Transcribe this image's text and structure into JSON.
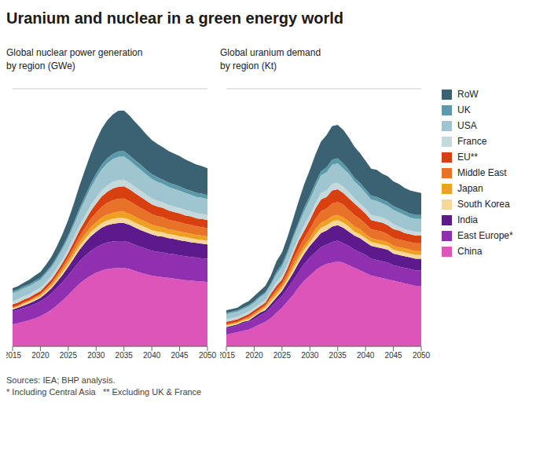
{
  "title": "Uranium and nuclear in a green energy world",
  "annotations": [
    "Sources: IEA; BHP analysis.\n* Including Central Asia   ** Excluding UK & France"
  ],
  "legend": "right",
  "chart_data": [
    {
      "type": "area",
      "stacked": true,
      "subtitle": "Global nuclear power generation\nby region (GWe)",
      "x": [
        2015,
        2016,
        2017,
        2018,
        2019,
        2020,
        2021,
        2022,
        2023,
        2024,
        2025,
        2026,
        2027,
        2028,
        2029,
        2030,
        2031,
        2032,
        2033,
        2034,
        2035,
        2036,
        2037,
        2038,
        2039,
        2040,
        2041,
        2042,
        2043,
        2044,
        2045,
        2046,
        2047,
        2048,
        2049,
        2050
      ],
      "xlim": [
        2015,
        2050
      ],
      "xticks": [
        2015,
        2020,
        2025,
        2030,
        2035,
        2040,
        2045,
        2050
      ],
      "ylim": [
        0,
        700
      ],
      "yticks": [
        0,
        100,
        200,
        300,
        400,
        500,
        600,
        700
      ],
      "grid": true,
      "tick_labels": "x",
      "series": [
        {
          "name": "China",
          "color": "#dd55b8",
          "values": [
            60,
            63,
            67,
            71,
            76,
            82,
            90,
            100,
            112,
            125,
            140,
            155,
            170,
            182,
            192,
            200,
            206,
            210,
            212,
            213,
            213,
            210,
            205,
            200,
            196,
            192,
            190,
            188,
            186,
            184,
            182,
            180,
            179,
            177,
            176,
            175
          ]
        },
        {
          "name": "East Europe*",
          "color": "#9030b0",
          "values": [
            35,
            36,
            37,
            38,
            39,
            40,
            42,
            44,
            47,
            50,
            53,
            57,
            61,
            64,
            67,
            69,
            71,
            72,
            73,
            73,
            73,
            72,
            71,
            70,
            69,
            68,
            67,
            67,
            66,
            66,
            65,
            65,
            64,
            64,
            63,
            63
          ]
        },
        {
          "name": "India",
          "color": "#5c1a8c",
          "values": [
            5,
            6,
            7,
            8,
            9,
            10,
            12,
            14,
            17,
            20,
            23,
            27,
            31,
            35,
            39,
            42,
            45,
            47,
            48,
            49,
            49,
            48,
            47,
            46,
            45,
            44,
            43,
            43,
            42,
            42,
            41,
            41,
            40,
            40,
            40,
            39
          ]
        },
        {
          "name": "South Korea",
          "color": "#f5d898",
          "values": [
            3,
            3,
            4,
            4,
            4,
            4,
            5,
            5,
            6,
            7,
            8,
            9,
            10,
            11,
            12,
            12,
            13,
            13,
            14,
            14,
            14,
            14,
            13,
            13,
            13,
            12,
            12,
            12,
            11,
            11,
            11,
            11,
            11,
            10,
            10,
            10
          ]
        },
        {
          "name": "Japan",
          "color": "#f0a020",
          "values": [
            2,
            2,
            3,
            3,
            4,
            4,
            5,
            6,
            7,
            8,
            9,
            10,
            11,
            12,
            13,
            14,
            15,
            16,
            16,
            17,
            17,
            16,
            16,
            15,
            15,
            14,
            14,
            14,
            13,
            13,
            13,
            12,
            12,
            12,
            12,
            12
          ]
        },
        {
          "name": "Middle East",
          "color": "#e87228",
          "values": [
            1,
            1,
            1,
            1,
            2,
            2,
            3,
            4,
            5,
            7,
            9,
            12,
            15,
            18,
            22,
            26,
            29,
            32,
            34,
            35,
            36,
            35,
            33,
            32,
            30,
            29,
            28,
            27,
            26,
            25,
            25,
            24,
            24,
            23,
            23,
            22
          ]
        },
        {
          "name": "EU**",
          "color": "#d94010",
          "values": [
            8,
            8,
            8,
            8,
            8,
            8,
            9,
            9,
            10,
            11,
            12,
            14,
            17,
            19,
            22,
            25,
            28,
            30,
            32,
            33,
            33,
            32,
            31,
            30,
            28,
            27,
            26,
            25,
            25,
            24,
            24,
            23,
            23,
            22,
            22,
            22
          ]
        },
        {
          "name": "France",
          "color": "#c5d8dc",
          "values": [
            9,
            9,
            9,
            9,
            9,
            9,
            9,
            9,
            10,
            10,
            11,
            12,
            13,
            14,
            15,
            16,
            17,
            17,
            18,
            18,
            18,
            17,
            17,
            17,
            16,
            16,
            16,
            15,
            15,
            15,
            15,
            15,
            14,
            14,
            14,
            14
          ]
        },
        {
          "name": "USA",
          "color": "#9ec5d0",
          "values": [
            22,
            22,
            22,
            22,
            22,
            22,
            23,
            24,
            25,
            27,
            30,
            33,
            38,
            43,
            48,
            53,
            57,
            60,
            62,
            63,
            63,
            61,
            59,
            57,
            55,
            53,
            51,
            50,
            49,
            48,
            47,
            46,
            45,
            44,
            44,
            43
          ]
        },
        {
          "name": "UK",
          "color": "#5a9aaa",
          "values": [
            5,
            5,
            5,
            5,
            5,
            5,
            5,
            6,
            6,
            7,
            7,
            8,
            9,
            10,
            11,
            12,
            13,
            14,
            14,
            15,
            15,
            14,
            14,
            14,
            13,
            13,
            13,
            12,
            12,
            12,
            12,
            11,
            11,
            11,
            11,
            11
          ]
        },
        {
          "name": "RoW",
          "color": "#3a6272",
          "values": [
            8,
            9,
            10,
            12,
            14,
            16,
            19,
            23,
            28,
            34,
            42,
            51,
            61,
            71,
            81,
            90,
            97,
            103,
            107,
            110,
            110,
            108,
            104,
            100,
            96,
            93,
            90,
            88,
            86,
            84,
            82,
            80,
            78,
            77,
            75,
            73
          ]
        }
      ]
    },
    {
      "type": "area",
      "stacked": true,
      "subtitle": "Global uranium demand\nby region (Kt)",
      "x": [
        2015,
        2016,
        2017,
        2018,
        2019,
        2020,
        2021,
        2022,
        2023,
        2024,
        2025,
        2026,
        2027,
        2028,
        2029,
        2030,
        2031,
        2032,
        2033,
        2034,
        2035,
        2036,
        2037,
        2038,
        2039,
        2040,
        2041,
        2042,
        2043,
        2044,
        2045,
        2046,
        2047,
        2048,
        2049,
        2050
      ],
      "xlim": [
        2015,
        2050
      ],
      "xticks": [
        2015,
        2020,
        2025,
        2030,
        2035,
        2040,
        2045,
        2050
      ],
      "ylim": [
        0,
        200
      ],
      "yticks": [
        0,
        25,
        50,
        75,
        100,
        125,
        150,
        175,
        200
      ],
      "grid": true,
      "tick_labels": "x",
      "series": [
        {
          "name": "China",
          "color": "#dd55b8",
          "values": [
            9,
            10,
            11,
            12,
            13,
            15,
            17,
            19,
            22,
            26,
            30,
            35,
            40,
            46,
            51,
            55,
            59,
            62,
            64,
            65,
            66,
            65,
            63,
            61,
            59,
            57,
            55,
            54,
            53,
            52,
            51,
            50,
            49,
            48,
            47,
            47
          ]
        },
        {
          "name": "East Europe*",
          "color": "#9030b0",
          "values": [
            5,
            5,
            5,
            6,
            6,
            6,
            7,
            7,
            8,
            9,
            9,
            10,
            11,
            12,
            13,
            14,
            14,
            15,
            15,
            16,
            16,
            15,
            15,
            14,
            14,
            14,
            13,
            13,
            13,
            13,
            12,
            12,
            12,
            12,
            12,
            12
          ]
        },
        {
          "name": "India",
          "color": "#5c1a8c",
          "values": [
            1,
            1,
            1,
            1,
            1,
            2,
            2,
            2,
            3,
            3,
            4,
            5,
            6,
            7,
            8,
            9,
            10,
            11,
            11,
            12,
            12,
            12,
            11,
            11,
            11,
            10,
            10,
            10,
            10,
            10,
            9,
            9,
            9,
            9,
            9,
            9
          ]
        },
        {
          "name": "South Korea",
          "color": "#f5d898",
          "values": [
            1,
            1,
            1,
            1,
            1,
            1,
            1,
            2,
            2,
            2,
            2,
            2,
            3,
            3,
            3,
            3,
            4,
            4,
            4,
            4,
            4,
            4,
            4,
            3,
            3,
            3,
            3,
            3,
            3,
            3,
            3,
            3,
            3,
            3,
            3,
            3
          ]
        },
        {
          "name": "Japan",
          "color": "#f0a020",
          "values": [
            1,
            1,
            1,
            1,
            1,
            1,
            1,
            1,
            2,
            2,
            2,
            2,
            3,
            3,
            3,
            3,
            4,
            4,
            4,
            4,
            4,
            4,
            4,
            4,
            4,
            3,
            3,
            3,
            3,
            3,
            3,
            3,
            3,
            3,
            3,
            3
          ]
        },
        {
          "name": "Middle East",
          "color": "#e87228",
          "values": [
            0,
            0,
            0,
            0,
            1,
            1,
            1,
            1,
            1,
            2,
            2,
            3,
            4,
            5,
            6,
            7,
            8,
            9,
            9,
            10,
            10,
            10,
            9,
            9,
            8,
            8,
            7,
            7,
            7,
            6,
            6,
            6,
            6,
            6,
            6,
            6
          ]
        },
        {
          "name": "EU**",
          "color": "#d94010",
          "values": [
            2,
            2,
            2,
            2,
            2,
            2,
            2,
            2,
            3,
            3,
            3,
            4,
            5,
            6,
            6,
            7,
            8,
            9,
            9,
            10,
            10,
            9,
            9,
            9,
            8,
            8,
            7,
            7,
            7,
            7,
            7,
            7,
            6,
            6,
            6,
            6
          ]
        },
        {
          "name": "France",
          "color": "#c5d8dc",
          "values": [
            2,
            2,
            2,
            2,
            2,
            2,
            2,
            2,
            2,
            3,
            3,
            3,
            3,
            3,
            4,
            4,
            4,
            5,
            5,
            5,
            5,
            5,
            5,
            4,
            4,
            4,
            4,
            4,
            4,
            4,
            4,
            3,
            3,
            3,
            3,
            3
          ]
        },
        {
          "name": "USA",
          "color": "#9ec5d0",
          "values": [
            4,
            4,
            4,
            4,
            4,
            4,
            5,
            5,
            5,
            6,
            7,
            8,
            9,
            10,
            11,
            12,
            13,
            14,
            14,
            15,
            15,
            14,
            14,
            13,
            13,
            12,
            12,
            12,
            11,
            11,
            11,
            11,
            11,
            10,
            10,
            10
          ]
        },
        {
          "name": "UK",
          "color": "#5a9aaa",
          "values": [
            1,
            1,
            1,
            1,
            1,
            1,
            1,
            1,
            1,
            2,
            2,
            2,
            2,
            2,
            3,
            3,
            3,
            3,
            4,
            4,
            4,
            4,
            3,
            3,
            3,
            3,
            3,
            3,
            3,
            3,
            3,
            3,
            3,
            3,
            3,
            3
          ]
        },
        {
          "name": "RoW",
          "color": "#3a6272",
          "values": [
            2,
            2,
            2,
            3,
            3,
            4,
            4,
            5,
            6,
            8,
            9,
            11,
            13,
            16,
            18,
            20,
            22,
            23,
            25,
            26,
            26,
            26,
            25,
            24,
            23,
            22,
            21,
            21,
            20,
            20,
            19,
            19,
            18,
            18,
            18,
            17
          ]
        }
      ]
    }
  ]
}
